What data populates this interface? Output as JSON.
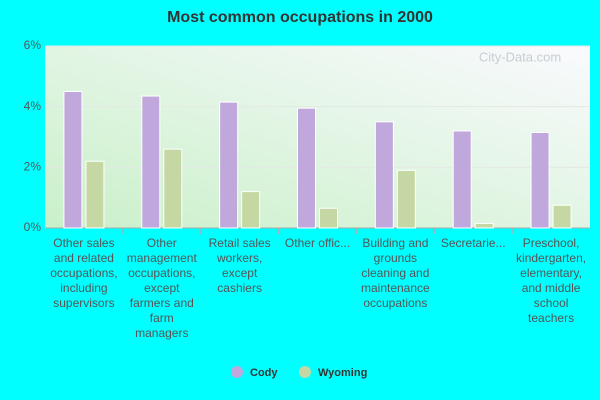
{
  "chart_data": {
    "type": "bar",
    "title": "Most common occupations in 2000",
    "watermark": "City-Data.com",
    "categories": [
      "Other sales and related occupations, including supervisors",
      "Other management occupations, except farmers and farm managers",
      "Retail sales workers, except cashiers",
      "Other offic...",
      "Building and grounds cleaning and maintenance occupations",
      "Secretarie...",
      "Preschool, kindergarten, elementary, and middle school teachers"
    ],
    "series": [
      {
        "name": "Cody",
        "color": "#c0a8dc",
        "values": [
          4.5,
          4.35,
          4.15,
          3.95,
          3.5,
          3.2,
          3.15
        ]
      },
      {
        "name": "Wyoming",
        "color": "#c5d8a4",
        "values": [
          2.2,
          2.6,
          1.2,
          0.65,
          1.9,
          0.15,
          0.75
        ]
      }
    ],
    "ylim": [
      0,
      6
    ],
    "yticks": [
      {
        "value": 0,
        "label": "0%"
      },
      {
        "value": 2,
        "label": "2%"
      },
      {
        "value": 4,
        "label": "4%"
      },
      {
        "value": 6,
        "label": "6%"
      }
    ],
    "grid": true
  }
}
